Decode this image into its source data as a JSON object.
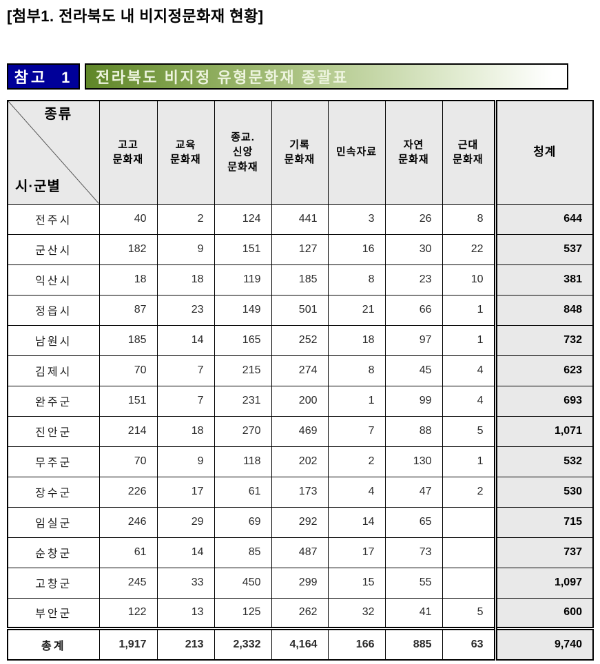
{
  "page": {
    "title": "[첨부1. 전라북도 내 비지정문화재 현황]"
  },
  "header_bar": {
    "ref_box_label": "참고 1",
    "bar_title": "전라북도 비지정 유형문화재 종괄표",
    "colors": {
      "ref_box_bg": "#000099",
      "bar_green_start": "#5f8628",
      "bar_text": "#edf4de"
    }
  },
  "table": {
    "corner": {
      "top_label": "종류",
      "bottom_label": "시·군별"
    },
    "column_headers": [
      "고고\n문화재",
      "교육\n문화재",
      "종교.\n신앙\n문화재",
      "기록\n문화재",
      "민속자료",
      "자연\n문화재",
      "근대\n문화재",
      "청계"
    ],
    "rows": [
      {
        "label": "전주시",
        "values": [
          "40",
          "2",
          "124",
          "441",
          "3",
          "26",
          "8"
        ],
        "total": "644"
      },
      {
        "label": "군산시",
        "values": [
          "182",
          "9",
          "151",
          "127",
          "16",
          "30",
          "22"
        ],
        "total": "537"
      },
      {
        "label": "익산시",
        "values": [
          "18",
          "18",
          "119",
          "185",
          "8",
          "23",
          "10"
        ],
        "total": "381"
      },
      {
        "label": "정읍시",
        "values": [
          "87",
          "23",
          "149",
          "501",
          "21",
          "66",
          "1"
        ],
        "total": "848"
      },
      {
        "label": "남원시",
        "values": [
          "185",
          "14",
          "165",
          "252",
          "18",
          "97",
          "1"
        ],
        "total": "732"
      },
      {
        "label": "김제시",
        "values": [
          "70",
          "7",
          "215",
          "274",
          "8",
          "45",
          "4"
        ],
        "total": "623"
      },
      {
        "label": "완주군",
        "values": [
          "151",
          "7",
          "231",
          "200",
          "1",
          "99",
          "4"
        ],
        "total": "693"
      },
      {
        "label": "진안군",
        "values": [
          "214",
          "18",
          "270",
          "469",
          "7",
          "88",
          "5"
        ],
        "total": "1,071"
      },
      {
        "label": "무주군",
        "values": [
          "70",
          "9",
          "118",
          "202",
          "2",
          "130",
          "1"
        ],
        "total": "532"
      },
      {
        "label": "장수군",
        "values": [
          "226",
          "17",
          "61",
          "173",
          "4",
          "47",
          "2"
        ],
        "total": "530"
      },
      {
        "label": "임실군",
        "values": [
          "246",
          "29",
          "69",
          "292",
          "14",
          "65",
          ""
        ],
        "total": "715"
      },
      {
        "label": "순창군",
        "values": [
          "61",
          "14",
          "85",
          "487",
          "17",
          "73",
          ""
        ],
        "total": "737"
      },
      {
        "label": "고창군",
        "values": [
          "245",
          "33",
          "450",
          "299",
          "15",
          "55",
          ""
        ],
        "total": "1,097"
      },
      {
        "label": "부안군",
        "values": [
          "122",
          "13",
          "125",
          "262",
          "32",
          "41",
          "5"
        ],
        "total": "600"
      }
    ],
    "total_row": {
      "label": "총계",
      "values": [
        "1,917",
        "213",
        "2,332",
        "4,164",
        "166",
        "885",
        "63"
      ],
      "total": "9,740"
    }
  }
}
